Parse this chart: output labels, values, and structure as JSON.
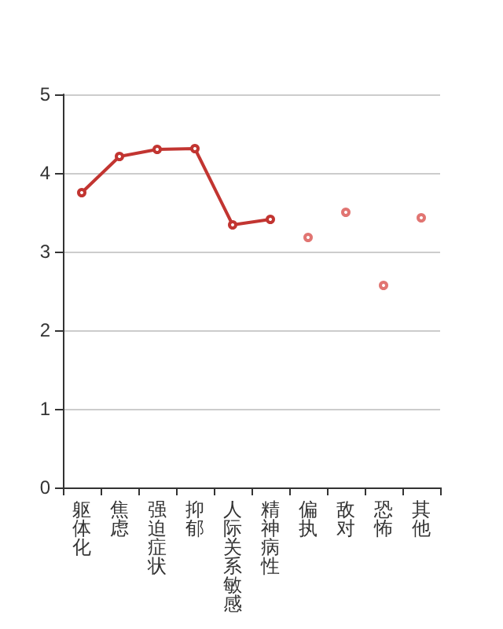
{
  "chart_data": {
    "type": "line",
    "categories": [
      "躯体化",
      "焦虑",
      "强迫症状",
      "抑郁",
      "人际关系敏感",
      "精神病性",
      "偏执",
      "敌对",
      "恐怖",
      "其他"
    ],
    "series": [
      {
        "color": "#c23531",
        "values": [
          3.75,
          4.21,
          4.3,
          4.31,
          3.34,
          3.41,
          null,
          null,
          null,
          null
        ]
      },
      {
        "type": "scatter",
        "color": "#d9534f",
        "x": [
          "偏执",
          "敌对",
          "恐怖",
          "其他"
        ],
        "values": [
          3.18,
          3.5,
          2.57,
          3.43
        ]
      }
    ],
    "ylim": [
      0,
      5
    ],
    "yticks": [
      0,
      1,
      2,
      3,
      4,
      5
    ],
    "grid": "y",
    "marker": "circle"
  }
}
